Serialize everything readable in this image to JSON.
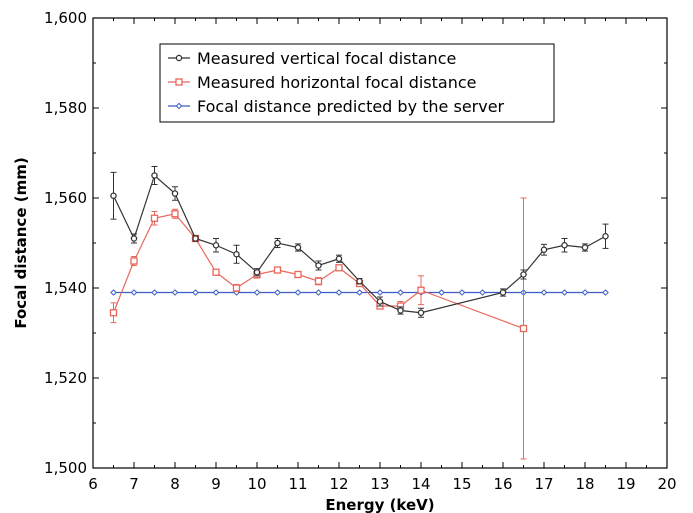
{
  "chart_data": {
    "type": "line",
    "xlabel": "Energy (keV)",
    "ylabel": "Focal distance (mm)",
    "xlim": [
      6,
      20
    ],
    "ylim": [
      1500,
      1600
    ],
    "x_ticks": [
      6,
      7,
      8,
      9,
      10,
      11,
      12,
      13,
      14,
      15,
      16,
      17,
      18,
      19,
      20
    ],
    "y_ticks": [
      1500,
      1520,
      1540,
      1560,
      1580,
      1600
    ],
    "x_tick_labels": [
      "6",
      "7",
      "8",
      "9",
      "10",
      "11",
      "12",
      "13",
      "14",
      "15",
      "16",
      "17",
      "18",
      "19",
      "20"
    ],
    "y_tick_labels": [
      "1,500",
      "1,520",
      "1,540",
      "1,560",
      "1,580",
      "1,600"
    ],
    "grid": false,
    "legend_position": "top-center",
    "series": [
      {
        "name": "Measured vertical focal distance",
        "color": "#333333",
        "marker": "circle",
        "points": [
          {
            "x": 6.5,
            "y": 1560.5,
            "err": 5.2
          },
          {
            "x": 7.0,
            "y": 1551.0,
            "err": 1.0
          },
          {
            "x": 7.5,
            "y": 1565.0,
            "err": 2.0
          },
          {
            "x": 8.0,
            "y": 1561.0,
            "err": 1.5
          },
          {
            "x": 8.5,
            "y": 1551.0,
            "err": 0.6
          },
          {
            "x": 9.0,
            "y": 1549.5,
            "err": 1.5
          },
          {
            "x": 9.5,
            "y": 1547.5,
            "err": 2.0
          },
          {
            "x": 10.0,
            "y": 1543.5,
            "err": 0.8
          },
          {
            "x": 10.5,
            "y": 1550.0,
            "err": 1.0
          },
          {
            "x": 11.0,
            "y": 1549.0,
            "err": 0.8
          },
          {
            "x": 11.5,
            "y": 1545.0,
            "err": 1.0
          },
          {
            "x": 12.0,
            "y": 1546.5,
            "err": 0.8
          },
          {
            "x": 12.5,
            "y": 1541.5,
            "err": 0.6
          },
          {
            "x": 13.0,
            "y": 1537.0,
            "err": 1.0
          },
          {
            "x": 13.5,
            "y": 1535.0,
            "err": 0.8
          },
          {
            "x": 14.0,
            "y": 1534.5,
            "err": 1.0
          },
          {
            "x": 16.0,
            "y": 1539.0,
            "err": 0.8
          },
          {
            "x": 16.5,
            "y": 1543.0,
            "err": 1.0
          },
          {
            "x": 17.0,
            "y": 1548.5,
            "err": 1.2
          },
          {
            "x": 17.5,
            "y": 1549.5,
            "err": 1.5
          },
          {
            "x": 18.0,
            "y": 1549.0,
            "err": 0.8
          },
          {
            "x": 18.5,
            "y": 1551.5,
            "err": 2.7
          }
        ]
      },
      {
        "name": "Measured horizontal focal distance",
        "color": "#e8675c",
        "marker": "square",
        "points": [
          {
            "x": 6.5,
            "y": 1534.5,
            "err": 2.2
          },
          {
            "x": 7.0,
            "y": 1546.0,
            "err": 1.0
          },
          {
            "x": 7.5,
            "y": 1555.5,
            "err": 1.5
          },
          {
            "x": 8.0,
            "y": 1556.5,
            "err": 1.0
          },
          {
            "x": 8.5,
            "y": 1551.0,
            "err": 0.6
          },
          {
            "x": 9.0,
            "y": 1543.5,
            "err": 0.6
          },
          {
            "x": 9.5,
            "y": 1540.0,
            "err": 0.8
          },
          {
            "x": 10.0,
            "y": 1543.0,
            "err": 0.8
          },
          {
            "x": 10.5,
            "y": 1544.0,
            "err": 0.6
          },
          {
            "x": 11.0,
            "y": 1543.0,
            "err": 0.6
          },
          {
            "x": 11.5,
            "y": 1541.5,
            "err": 0.8
          },
          {
            "x": 12.0,
            "y": 1544.5,
            "err": 0.6
          },
          {
            "x": 12.5,
            "y": 1541.0,
            "err": 0.6
          },
          {
            "x": 13.0,
            "y": 1536.0,
            "err": 0.6
          },
          {
            "x": 13.5,
            "y": 1536.0,
            "err": 1.0
          },
          {
            "x": 14.0,
            "y": 1539.5,
            "err": 3.2
          },
          {
            "x": 16.5,
            "y": 1531.0,
            "err": 29.0
          }
        ]
      },
      {
        "name": "Focal distance predicted by the server",
        "color": "#3b5cc8",
        "marker": "diamond",
        "points": [
          {
            "x": 6.5,
            "y": 1539
          },
          {
            "x": 7.0,
            "y": 1539
          },
          {
            "x": 7.5,
            "y": 1539
          },
          {
            "x": 8.0,
            "y": 1539
          },
          {
            "x": 8.5,
            "y": 1539
          },
          {
            "x": 9.0,
            "y": 1539
          },
          {
            "x": 9.5,
            "y": 1539
          },
          {
            "x": 10.0,
            "y": 1539
          },
          {
            "x": 10.5,
            "y": 1539
          },
          {
            "x": 11.0,
            "y": 1539
          },
          {
            "x": 11.5,
            "y": 1539
          },
          {
            "x": 12.0,
            "y": 1539
          },
          {
            "x": 12.5,
            "y": 1539
          },
          {
            "x": 13.0,
            "y": 1539
          },
          {
            "x": 13.5,
            "y": 1539
          },
          {
            "x": 14.0,
            "y": 1539
          },
          {
            "x": 14.5,
            "y": 1539
          },
          {
            "x": 15.0,
            "y": 1539
          },
          {
            "x": 15.5,
            "y": 1539
          },
          {
            "x": 16.0,
            "y": 1539
          },
          {
            "x": 16.5,
            "y": 1539
          },
          {
            "x": 17.0,
            "y": 1539
          },
          {
            "x": 17.5,
            "y": 1539
          },
          {
            "x": 18.0,
            "y": 1539
          },
          {
            "x": 18.5,
            "y": 1539
          }
        ]
      }
    ]
  }
}
